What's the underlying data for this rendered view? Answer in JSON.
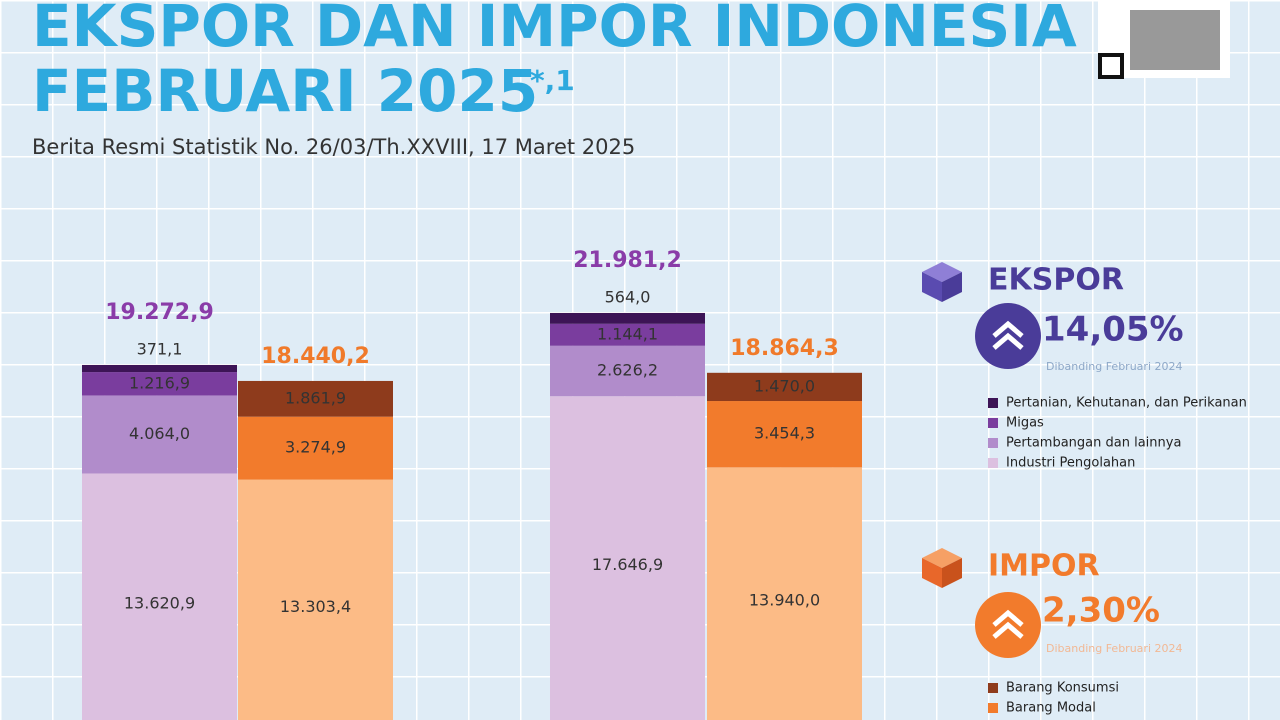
{
  "chart_data": {
    "type": "bar",
    "title_line1": "EKSPOR DAN IMPOR INDONESIA",
    "title_line2": "FEBRUARI 2025",
    "title_note": "*,1",
    "subtitle": "Berita Resmi Statistik No. 26/03/Th.XXVIII, 17 Maret 2025",
    "export_series": [
      {
        "name": "Pertanian, Kehutanan, dan Perikanan",
        "color": "#3d1456"
      },
      {
        "name": "Migas",
        "color": "#7a3d9e"
      },
      {
        "name": "Pertambangan dan lainnya",
        "color": "#b18ccb"
      },
      {
        "name": "Industri Pengolahan",
        "color": "#dcc0e0"
      }
    ],
    "import_series": [
      {
        "name": "Barang Konsumsi",
        "color": "#8e3b1c"
      },
      {
        "name": "Barang Modal",
        "color": "#f27b2c"
      },
      {
        "name": null,
        "color": "#fcbb86"
      }
    ],
    "bars": [
      {
        "kind": "export",
        "values": [
          371.1,
          1216.9,
          4064.0,
          13620.9
        ],
        "value_labels": [
          "371,1",
          "1.216,9",
          "4.064,0",
          "13.620,9"
        ],
        "total": 19272.9,
        "total_label": "19.272,9"
      },
      {
        "kind": "import",
        "values": [
          1861.9,
          3274.9,
          13303.4
        ],
        "value_labels": [
          "1.861,9",
          "3.274,9",
          "13.303,4"
        ],
        "total": 18440.2,
        "total_label": "18.440,2"
      },
      {
        "kind": "export",
        "values": [
          564.0,
          1144.1,
          2626.2,
          17646.9
        ],
        "value_labels": [
          "564,0",
          "1.144,1",
          "2.626,2",
          "17.646,9"
        ],
        "total": 21981.2,
        "total_label": "21.981,2"
      },
      {
        "kind": "import",
        "values": [
          1470.0,
          3454.3,
          13940.0
        ],
        "value_labels": [
          "1.470,0",
          "3.454,3",
          "13.940,0"
        ],
        "total": 18864.3,
        "total_label": "18.864,3"
      }
    ],
    "export_panel": {
      "title": "EKSPOR",
      "change": "14,05%",
      "note": "Dibanding Februari 2024"
    },
    "import_panel": {
      "title": "IMPOR",
      "change": "2,30%",
      "note": "Dibanding Februari 2024"
    }
  }
}
